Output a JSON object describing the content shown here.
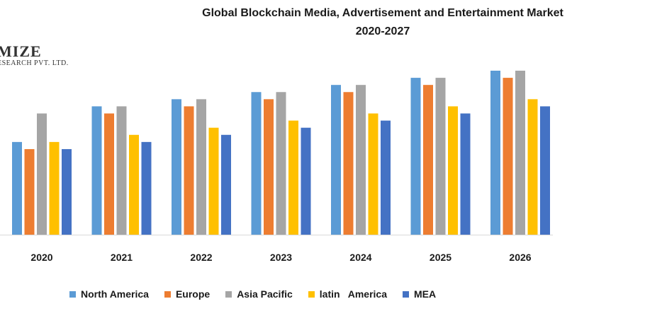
{
  "chart_data": {
    "type": "bar",
    "title": "Global Blockchain Media, Advertisement and Entertainment Market 2020-2027",
    "title_lines": [
      "Global Blockchain Media, Advertisement and Entertainment Market",
      "2020-2027"
    ],
    "categories": [
      "2020",
      "2021",
      "2022",
      "2023",
      "2024",
      "2025",
      "2026"
    ],
    "series": [
      {
        "name": "North America",
        "color": "#5b9bd5",
        "values": [
          13,
          18,
          19,
          20,
          21,
          22,
          23
        ]
      },
      {
        "name": "Europe",
        "color": "#ed7d31",
        "values": [
          12,
          17,
          18,
          19,
          20,
          21,
          22
        ]
      },
      {
        "name": "Asia Pacific",
        "color": "#a5a5a5",
        "values": [
          17,
          18,
          19,
          20,
          21,
          22,
          23
        ]
      },
      {
        "name": "latin   America",
        "color": "#ffc000",
        "values": [
          13,
          14,
          15,
          16,
          17,
          18,
          19
        ]
      },
      {
        "name": "MEA",
        "color": "#4472c4",
        "values": [
          12,
          13,
          14,
          15,
          16,
          17,
          18
        ]
      }
    ],
    "xlabel": "",
    "ylabel": "",
    "ylim": [
      0,
      25
    ],
    "grid": false,
    "legend": "bottom"
  },
  "logo": {
    "line1": "MIZE",
    "line2": "ESEARCH PVT. LTD."
  }
}
